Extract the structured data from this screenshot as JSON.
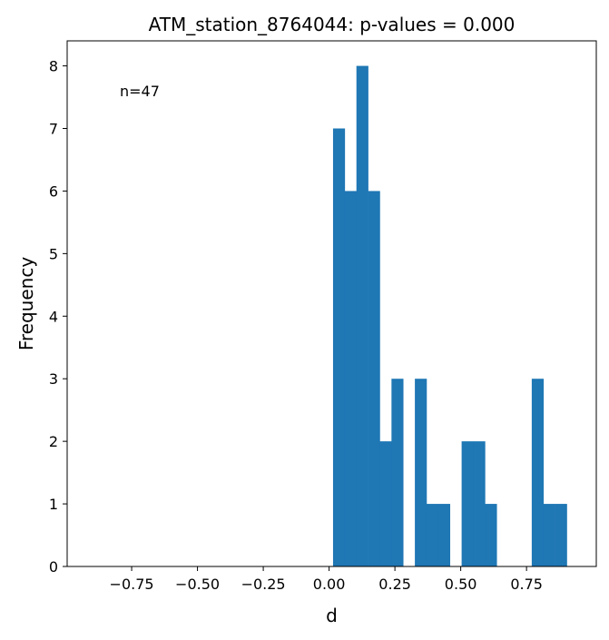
{
  "chart_data": {
    "type": "bar",
    "title": "ATM_station_8764044: p-values = 0.000",
    "xlabel": "d",
    "ylabel": "Frequency",
    "annotation": "n=47",
    "xlim": [
      -0.995,
      1.015
    ],
    "ylim": [
      0,
      8.4
    ],
    "xticks": [
      {
        "value": -0.75,
        "label": "−0.75"
      },
      {
        "value": -0.5,
        "label": "−0.50"
      },
      {
        "value": -0.25,
        "label": "−0.25"
      },
      {
        "value": 0.0,
        "label": "0.00"
      },
      {
        "value": 0.25,
        "label": "0.25"
      },
      {
        "value": 0.5,
        "label": "0.50"
      },
      {
        "value": 0.75,
        "label": "0.75"
      }
    ],
    "yticks": [
      {
        "value": 0,
        "label": "0"
      },
      {
        "value": 1,
        "label": "1"
      },
      {
        "value": 2,
        "label": "2"
      },
      {
        "value": 3,
        "label": "3"
      },
      {
        "value": 4,
        "label": "4"
      },
      {
        "value": 5,
        "label": "5"
      },
      {
        "value": 6,
        "label": "6"
      },
      {
        "value": 7,
        "label": "7"
      },
      {
        "value": 8,
        "label": "8"
      }
    ],
    "bin_width": 0.0444,
    "bins": [
      {
        "start": 0.015,
        "count": 7
      },
      {
        "start": 0.0594,
        "count": 6
      },
      {
        "start": 0.1038,
        "count": 8
      },
      {
        "start": 0.1482,
        "count": 6
      },
      {
        "start": 0.1926,
        "count": 2
      },
      {
        "start": 0.237,
        "count": 3
      },
      {
        "start": 0.2814,
        "count": 0
      },
      {
        "start": 0.3258,
        "count": 3
      },
      {
        "start": 0.3702,
        "count": 1
      },
      {
        "start": 0.4146,
        "count": 1
      },
      {
        "start": 0.459,
        "count": 0
      },
      {
        "start": 0.5034,
        "count": 2
      },
      {
        "start": 0.5478,
        "count": 2
      },
      {
        "start": 0.5922,
        "count": 1
      },
      {
        "start": 0.6366,
        "count": 0
      },
      {
        "start": 0.681,
        "count": 0
      },
      {
        "start": 0.7254,
        "count": 0
      },
      {
        "start": 0.7698,
        "count": 3
      },
      {
        "start": 0.8142,
        "count": 1
      },
      {
        "start": 0.8586,
        "count": 1
      }
    ],
    "bar_color": "#1f77b4",
    "grid": false,
    "legend": false
  }
}
